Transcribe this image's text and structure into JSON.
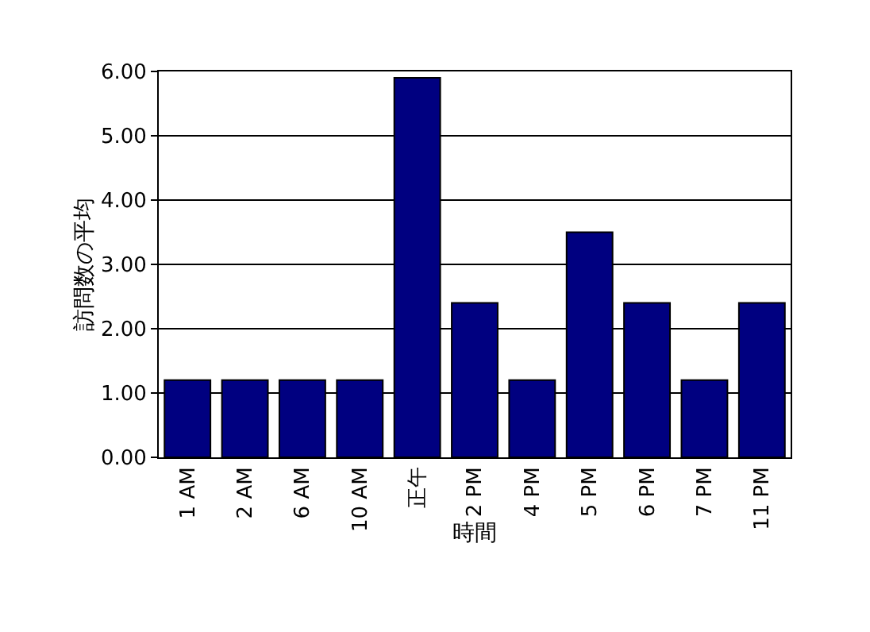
{
  "chart_data": {
    "type": "bar",
    "xlabel": "時間",
    "ylabel": "訪問数の平均",
    "categories": [
      "1 AM",
      "2 AM",
      "6 AM",
      "10 AM",
      "正午",
      "2 PM",
      "4 PM",
      "5 PM",
      "6 PM",
      "7 PM",
      "11 PM"
    ],
    "values": [
      1.2,
      1.2,
      1.2,
      1.2,
      5.9,
      2.4,
      1.2,
      3.5,
      2.4,
      1.2,
      2.4
    ],
    "color": "#000080",
    "ylim": [
      0,
      6
    ],
    "yticks": [
      {
        "value": 0,
        "label": "0.00"
      },
      {
        "value": 1,
        "label": "1.00"
      },
      {
        "value": 2,
        "label": "2.00"
      },
      {
        "value": 3,
        "label": "3.00"
      },
      {
        "value": 4,
        "label": "4.00"
      },
      {
        "value": 5,
        "label": "5.00"
      },
      {
        "value": 6,
        "label": "6.00"
      }
    ],
    "grid": "y"
  }
}
